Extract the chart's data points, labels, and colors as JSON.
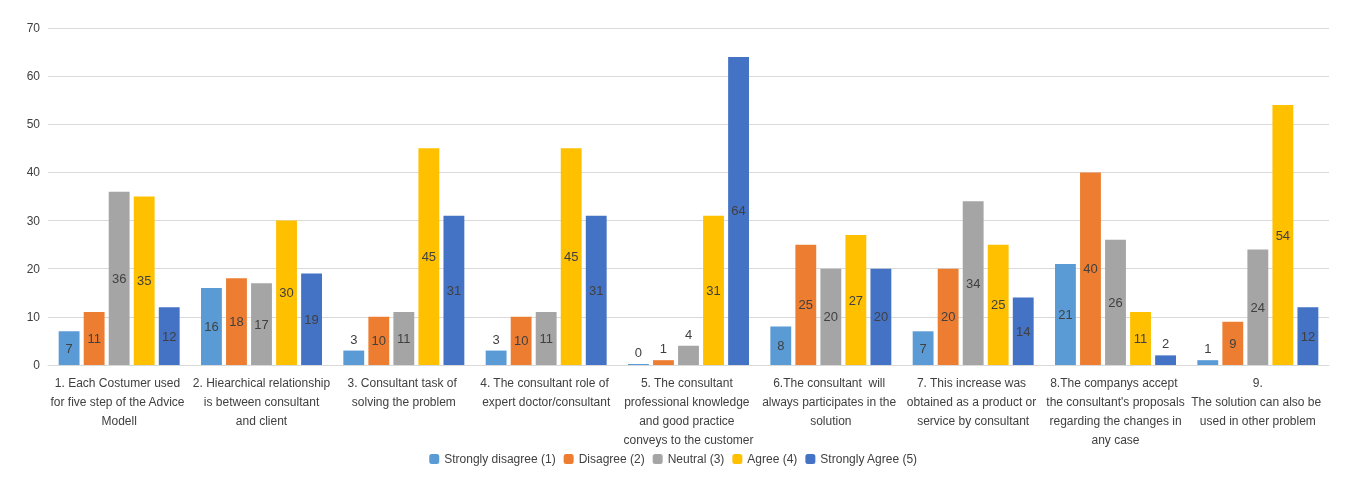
{
  "chart_data": {
    "type": "bar",
    "categories": [
      "1. Each Costumer used for five step of the Advice Modell",
      "2. Hiearchical relationship is between consultant and client",
      "3. Consultant task of solving the problem",
      "4. The consultant role of expert doctor/consultant",
      "5. The consultant professional knowledge and good practice conveys to the customer",
      "6.The consultant  will always participates in the solution",
      "7. This increase was obtained as a product or service by consultant",
      "8.The companys accept the consultant's proposals regarding the changes in any case",
      "9.\nThe solution can also be used in other problem"
    ],
    "series": [
      {
        "name": "Strongly disagree (1)",
        "color": "#5b9bd5",
        "values": [
          7,
          16,
          3,
          3,
          0,
          8,
          7,
          21,
          1
        ]
      },
      {
        "name": "Disagree (2)",
        "color": "#ed7d31",
        "values": [
          11,
          18,
          10,
          10,
          1,
          25,
          20,
          40,
          9
        ]
      },
      {
        "name": "Neutral (3)",
        "color": "#a5a5a5",
        "values": [
          36,
          17,
          11,
          11,
          4,
          20,
          34,
          26,
          24
        ]
      },
      {
        "name": "Agree (4)",
        "color": "#ffc000",
        "values": [
          35,
          30,
          45,
          45,
          31,
          27,
          25,
          11,
          54
        ]
      },
      {
        "name": "Strongly Agree (5)",
        "color": "#4472c4",
        "values": [
          12,
          19,
          31,
          31,
          64,
          20,
          14,
          2,
          12
        ]
      }
    ],
    "ylim": [
      0,
      70
    ],
    "yticks": [
      0,
      10,
      20,
      30,
      40,
      50,
      60,
      70
    ],
    "grid": "y",
    "legend": "bottom",
    "data_labels": true
  }
}
